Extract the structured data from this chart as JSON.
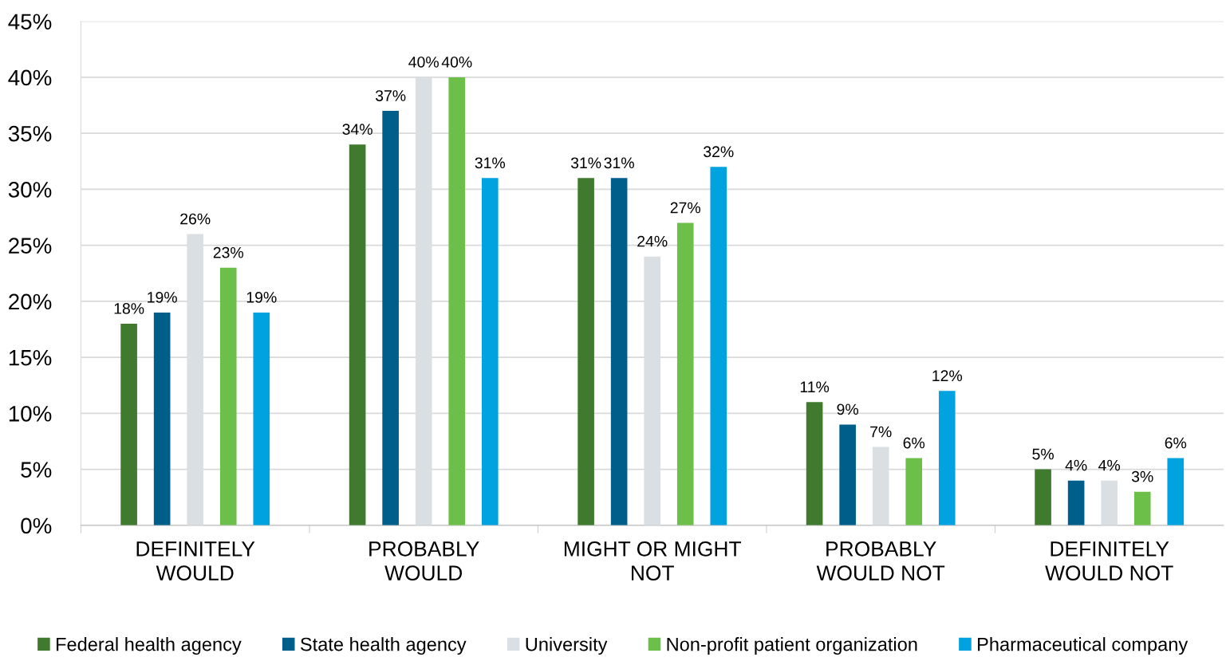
{
  "chart_data": {
    "type": "bar",
    "categories": [
      "DEFINITELY\nWOULD",
      "PROBABLY\nWOULD",
      "MIGHT OR MIGHT\nNOT",
      "PROBABLY\nWOULD NOT",
      "DEFINITELY\nWOULD NOT"
    ],
    "series": [
      {
        "name": "Federal health agency",
        "color": "#3f7a2e",
        "values": [
          18,
          34,
          31,
          11,
          5
        ],
        "value_labels": [
          "18%",
          "34%",
          "31%",
          "11%",
          "5%"
        ]
      },
      {
        "name": "State health agency",
        "color": "#005f8a",
        "values": [
          19,
          37,
          31,
          9,
          4
        ],
        "value_labels": [
          "19%",
          "37%",
          "31%",
          "9%",
          "4%"
        ]
      },
      {
        "name": "University",
        "color": "#d9dfe2",
        "values": [
          26,
          40,
          24,
          7,
          4
        ],
        "value_labels": [
          "26%",
          "40%",
          "24%",
          "7%",
          "4%"
        ]
      },
      {
        "name": "Non-profit patient organization",
        "color": "#6cc04a",
        "values": [
          23,
          40,
          27,
          6,
          3
        ],
        "value_labels": [
          "23%",
          "40%",
          "27%",
          "6%",
          "3%"
        ]
      },
      {
        "name": "Pharmaceutical company",
        "color": "#00a3e0",
        "values": [
          19,
          31,
          32,
          12,
          6
        ],
        "value_labels": [
          "19%",
          "31%",
          "32%",
          "12%",
          "6%"
        ]
      }
    ],
    "ylim": [
      0,
      45
    ],
    "yticks": [
      {
        "value": 0,
        "label": "0%"
      },
      {
        "value": 5,
        "label": "5%"
      },
      {
        "value": 10,
        "label": "10%"
      },
      {
        "value": 15,
        "label": "15%"
      },
      {
        "value": 20,
        "label": "20%"
      },
      {
        "value": 25,
        "label": "25%"
      },
      {
        "value": 30,
        "label": "30%"
      },
      {
        "value": 35,
        "label": "35%"
      },
      {
        "value": 40,
        "label": "40%"
      },
      {
        "value": 45,
        "label": "45%"
      }
    ],
    "grid": "y",
    "legend": "bottom"
  }
}
